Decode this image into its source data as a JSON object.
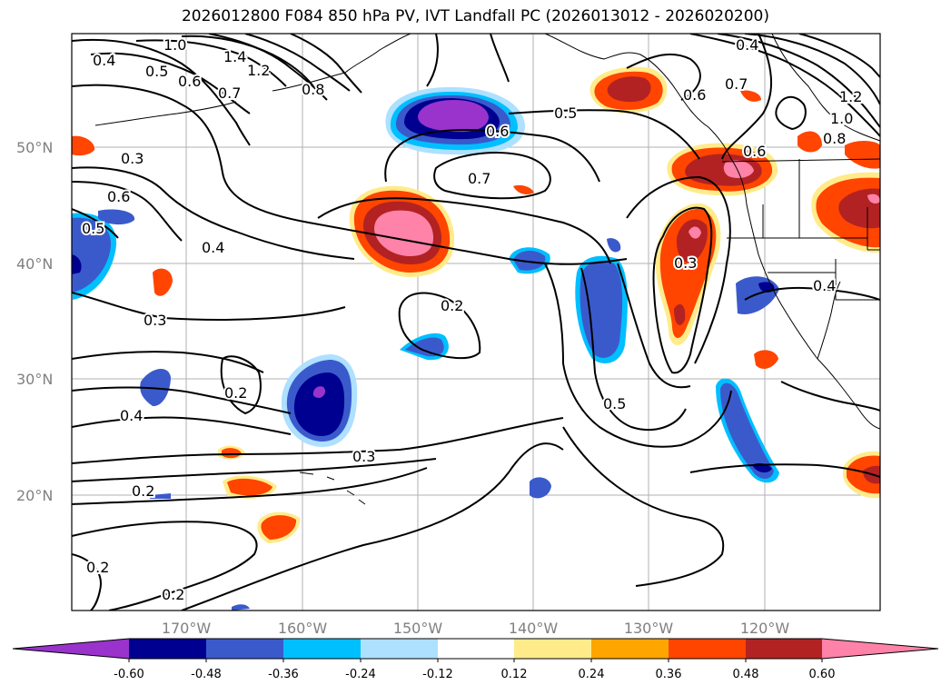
{
  "title": "2026012800 F084 850 hPa PV, IVT Landfall PC (2026013012 - 2026020200)",
  "axes": {
    "lat_labels": [
      "50°N",
      "40°N",
      "30°N",
      "20°N"
    ],
    "lon_labels": [
      "170°W",
      "160°W",
      "150°W",
      "140°W",
      "130°W",
      "120°W"
    ]
  },
  "contour_labels": [
    "0.4",
    "1.0",
    "1.4",
    "1.2",
    "0.5",
    "0.6",
    "0.7",
    "0.8",
    "0.5",
    "0.6",
    "0.7",
    "0.6",
    "0.7",
    "0.6",
    "0.4",
    "1.2",
    "1.0",
    "0.8",
    "0.3",
    "0.6",
    "0.5",
    "0.4",
    "0.3",
    "0.3",
    "0.4",
    "0.2",
    "0.2",
    "0.4",
    "0.3",
    "0.2",
    "0.5",
    "0.2",
    "0.2"
  ],
  "colorbar": {
    "tick_labels": [
      "-0.60",
      "-0.48",
      "-0.36",
      "-0.24",
      "-0.12",
      "0.12",
      "0.24",
      "0.36",
      "0.48",
      "0.60"
    ],
    "colors": [
      "#9933cc",
      "#000090",
      "#3a5acc",
      "#00bfff",
      "#aee0ff",
      "#ffffff",
      "#ffeb8a",
      "#ffa500",
      "#ff4500",
      "#b22222",
      "#ff82a8",
      "#ff82a8"
    ],
    "extend": "both"
  },
  "colors": {
    "neg_strong": "#9933cc",
    "neg_dark": "#000090",
    "neg_mid": "#3a5acc",
    "neg_light": "#00bfff",
    "neg_pale": "#aee0ff",
    "pos_pale": "#ffeb8a",
    "pos_light": "#ffa500",
    "pos_mid": "#ff4500",
    "pos_dark": "#b22222",
    "pos_strong": "#ff82a8"
  }
}
